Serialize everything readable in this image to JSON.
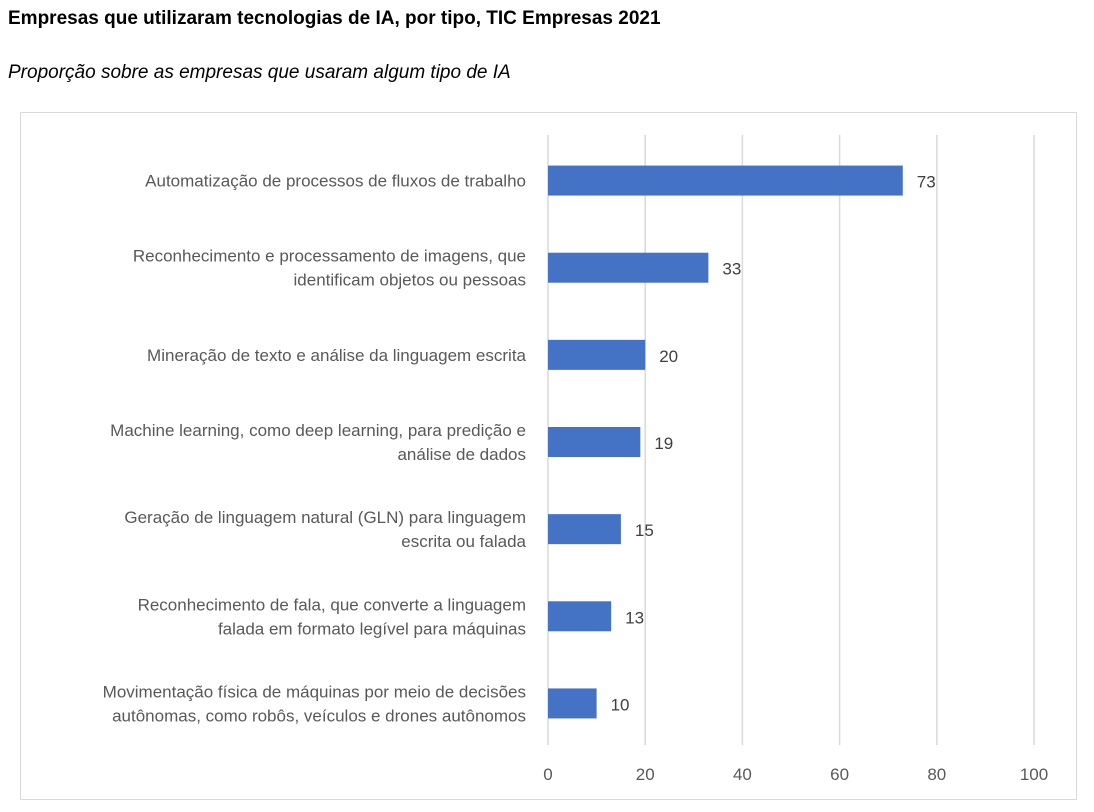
{
  "chart_data": {
    "type": "bar",
    "orientation": "horizontal",
    "title": "Empresas que utilizaram tecnologias de IA, por tipo, TIC Empresas 2021",
    "subtitle": "Proporção sobre as empresas que usaram algum tipo de IA",
    "categories": [
      [
        "Automatização de processos de fluxos de trabalho"
      ],
      [
        "Reconhecimento e processamento de imagens, que",
        "identificam objetos ou pessoas"
      ],
      [
        "Mineração de texto e análise da linguagem escrita"
      ],
      [
        "Machine learning, como deep learning, para predição e",
        "análise de dados"
      ],
      [
        "Geração de linguagem natural (GLN) para linguagem",
        "escrita ou falada"
      ],
      [
        "Reconhecimento de fala, que converte a linguagem",
        "falada em formato legível para máquinas"
      ],
      [
        "Movimentação física de máquinas por meio de decisões",
        "autônomas, como robôs, veículos e drones autônomos"
      ]
    ],
    "values": [
      73,
      33,
      20,
      19,
      15,
      13,
      10
    ],
    "xlim": [
      0,
      100
    ],
    "xticks": [
      "0",
      "20",
      "40",
      "60",
      "80",
      "100"
    ],
    "grid": true,
    "bar_color": "#4472C4",
    "xlabel": "",
    "ylabel": ""
  }
}
